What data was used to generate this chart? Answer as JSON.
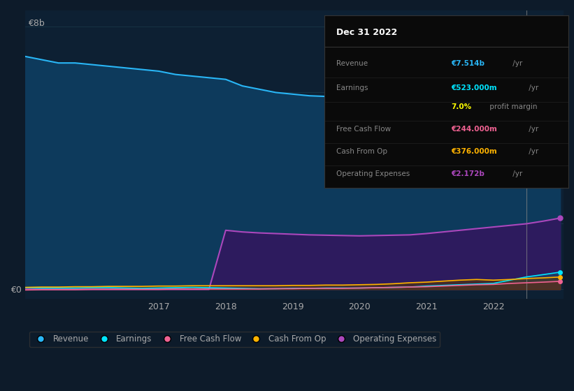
{
  "bg_color": "#0d1b2a",
  "plot_bg_color": "#0d2033",
  "grid_color": "#1a3a4a",
  "years": [
    2015.0,
    2015.25,
    2015.5,
    2015.75,
    2016.0,
    2016.25,
    2016.5,
    2016.75,
    2017.0,
    2017.25,
    2017.5,
    2017.75,
    2018.0,
    2018.25,
    2018.5,
    2018.75,
    2019.0,
    2019.25,
    2019.5,
    2019.75,
    2020.0,
    2020.25,
    2020.5,
    2020.75,
    2021.0,
    2021.25,
    2021.5,
    2021.75,
    2022.0,
    2022.25,
    2022.5,
    2022.75,
    2023.0
  ],
  "revenue": [
    7.1,
    7.0,
    6.9,
    6.9,
    6.85,
    6.8,
    6.75,
    6.7,
    6.65,
    6.55,
    6.5,
    6.45,
    6.4,
    6.2,
    6.1,
    6.0,
    5.95,
    5.9,
    5.88,
    5.86,
    5.85,
    5.82,
    5.8,
    5.8,
    5.85,
    5.95,
    6.1,
    6.3,
    6.4,
    6.6,
    6.9,
    7.3,
    7.514
  ],
  "earnings": [
    0.05,
    0.04,
    0.04,
    0.04,
    0.05,
    0.05,
    0.04,
    0.03,
    0.04,
    0.05,
    0.06,
    0.05,
    0.04,
    0.03,
    0.02,
    0.02,
    0.03,
    0.03,
    0.04,
    0.04,
    0.04,
    0.05,
    0.06,
    0.07,
    0.1,
    0.12,
    0.14,
    0.16,
    0.18,
    0.28,
    0.38,
    0.45,
    0.523
  ],
  "free_cash_flow": [
    -0.02,
    -0.01,
    -0.01,
    -0.01,
    0.0,
    0.0,
    0.0,
    0.0,
    0.0,
    0.01,
    0.01,
    0.01,
    0.01,
    0.01,
    0.01,
    0.02,
    0.02,
    0.03,
    0.03,
    0.03,
    0.04,
    0.05,
    0.06,
    0.07,
    0.08,
    0.1,
    0.12,
    0.14,
    0.15,
    0.18,
    0.2,
    0.22,
    0.244
  ],
  "cash_from_op": [
    0.06,
    0.07,
    0.07,
    0.08,
    0.08,
    0.09,
    0.09,
    0.09,
    0.1,
    0.1,
    0.11,
    0.11,
    0.11,
    0.11,
    0.11,
    0.11,
    0.12,
    0.12,
    0.13,
    0.13,
    0.14,
    0.15,
    0.17,
    0.2,
    0.22,
    0.25,
    0.28,
    0.3,
    0.28,
    0.3,
    0.33,
    0.35,
    0.376
  ],
  "operating_expenses": [
    0.0,
    0.0,
    0.0,
    0.0,
    0.0,
    0.0,
    0.0,
    0.0,
    0.0,
    0.0,
    0.0,
    0.0,
    1.8,
    1.75,
    1.72,
    1.7,
    1.68,
    1.66,
    1.65,
    1.64,
    1.63,
    1.64,
    1.65,
    1.66,
    1.7,
    1.75,
    1.8,
    1.85,
    1.9,
    1.95,
    2.0,
    2.08,
    2.172
  ],
  "revenue_color": "#29b6f6",
  "revenue_fill": "#0d3a5c",
  "earnings_color": "#00e5ff",
  "free_cash_flow_color": "#f06292",
  "cash_from_op_color": "#ffb300",
  "operating_expenses_color": "#ab47bc",
  "operating_expenses_fill": "#2d1b5e",
  "tooltip_bg": "#0a0a0a",
  "tooltip_border": "#333333",
  "ylim": [
    -0.3,
    8.5
  ],
  "xtick_years": [
    2017,
    2018,
    2019,
    2020,
    2021,
    2022
  ],
  "legend_items": [
    "Revenue",
    "Earnings",
    "Free Cash Flow",
    "Cash From Op",
    "Operating Expenses"
  ],
  "legend_colors": [
    "#29b6f6",
    "#00e5ff",
    "#f06292",
    "#ffb300",
    "#ab47bc"
  ],
  "vline_x": 2022.5,
  "title": "Dec 31 2022",
  "tooltip_rows": [
    {
      "label": "Revenue",
      "value": "€7.514b",
      "vcolor": "#29b6f6",
      "suffix": " /yr"
    },
    {
      "label": "Earnings",
      "value": "€523.000m",
      "vcolor": "#00e5ff",
      "suffix": " /yr"
    },
    {
      "label": "",
      "value": "7.0%",
      "vcolor": "#ffff00",
      "suffix": " profit margin"
    },
    {
      "label": "Free Cash Flow",
      "value": "€244.000m",
      "vcolor": "#f06292",
      "suffix": " /yr"
    },
    {
      "label": "Cash From Op",
      "value": "€376.000m",
      "vcolor": "#ffb300",
      "suffix": " /yr"
    },
    {
      "label": "Operating Expenses",
      "value": "€2.172b",
      "vcolor": "#ab47bc",
      "suffix": " /yr"
    }
  ]
}
